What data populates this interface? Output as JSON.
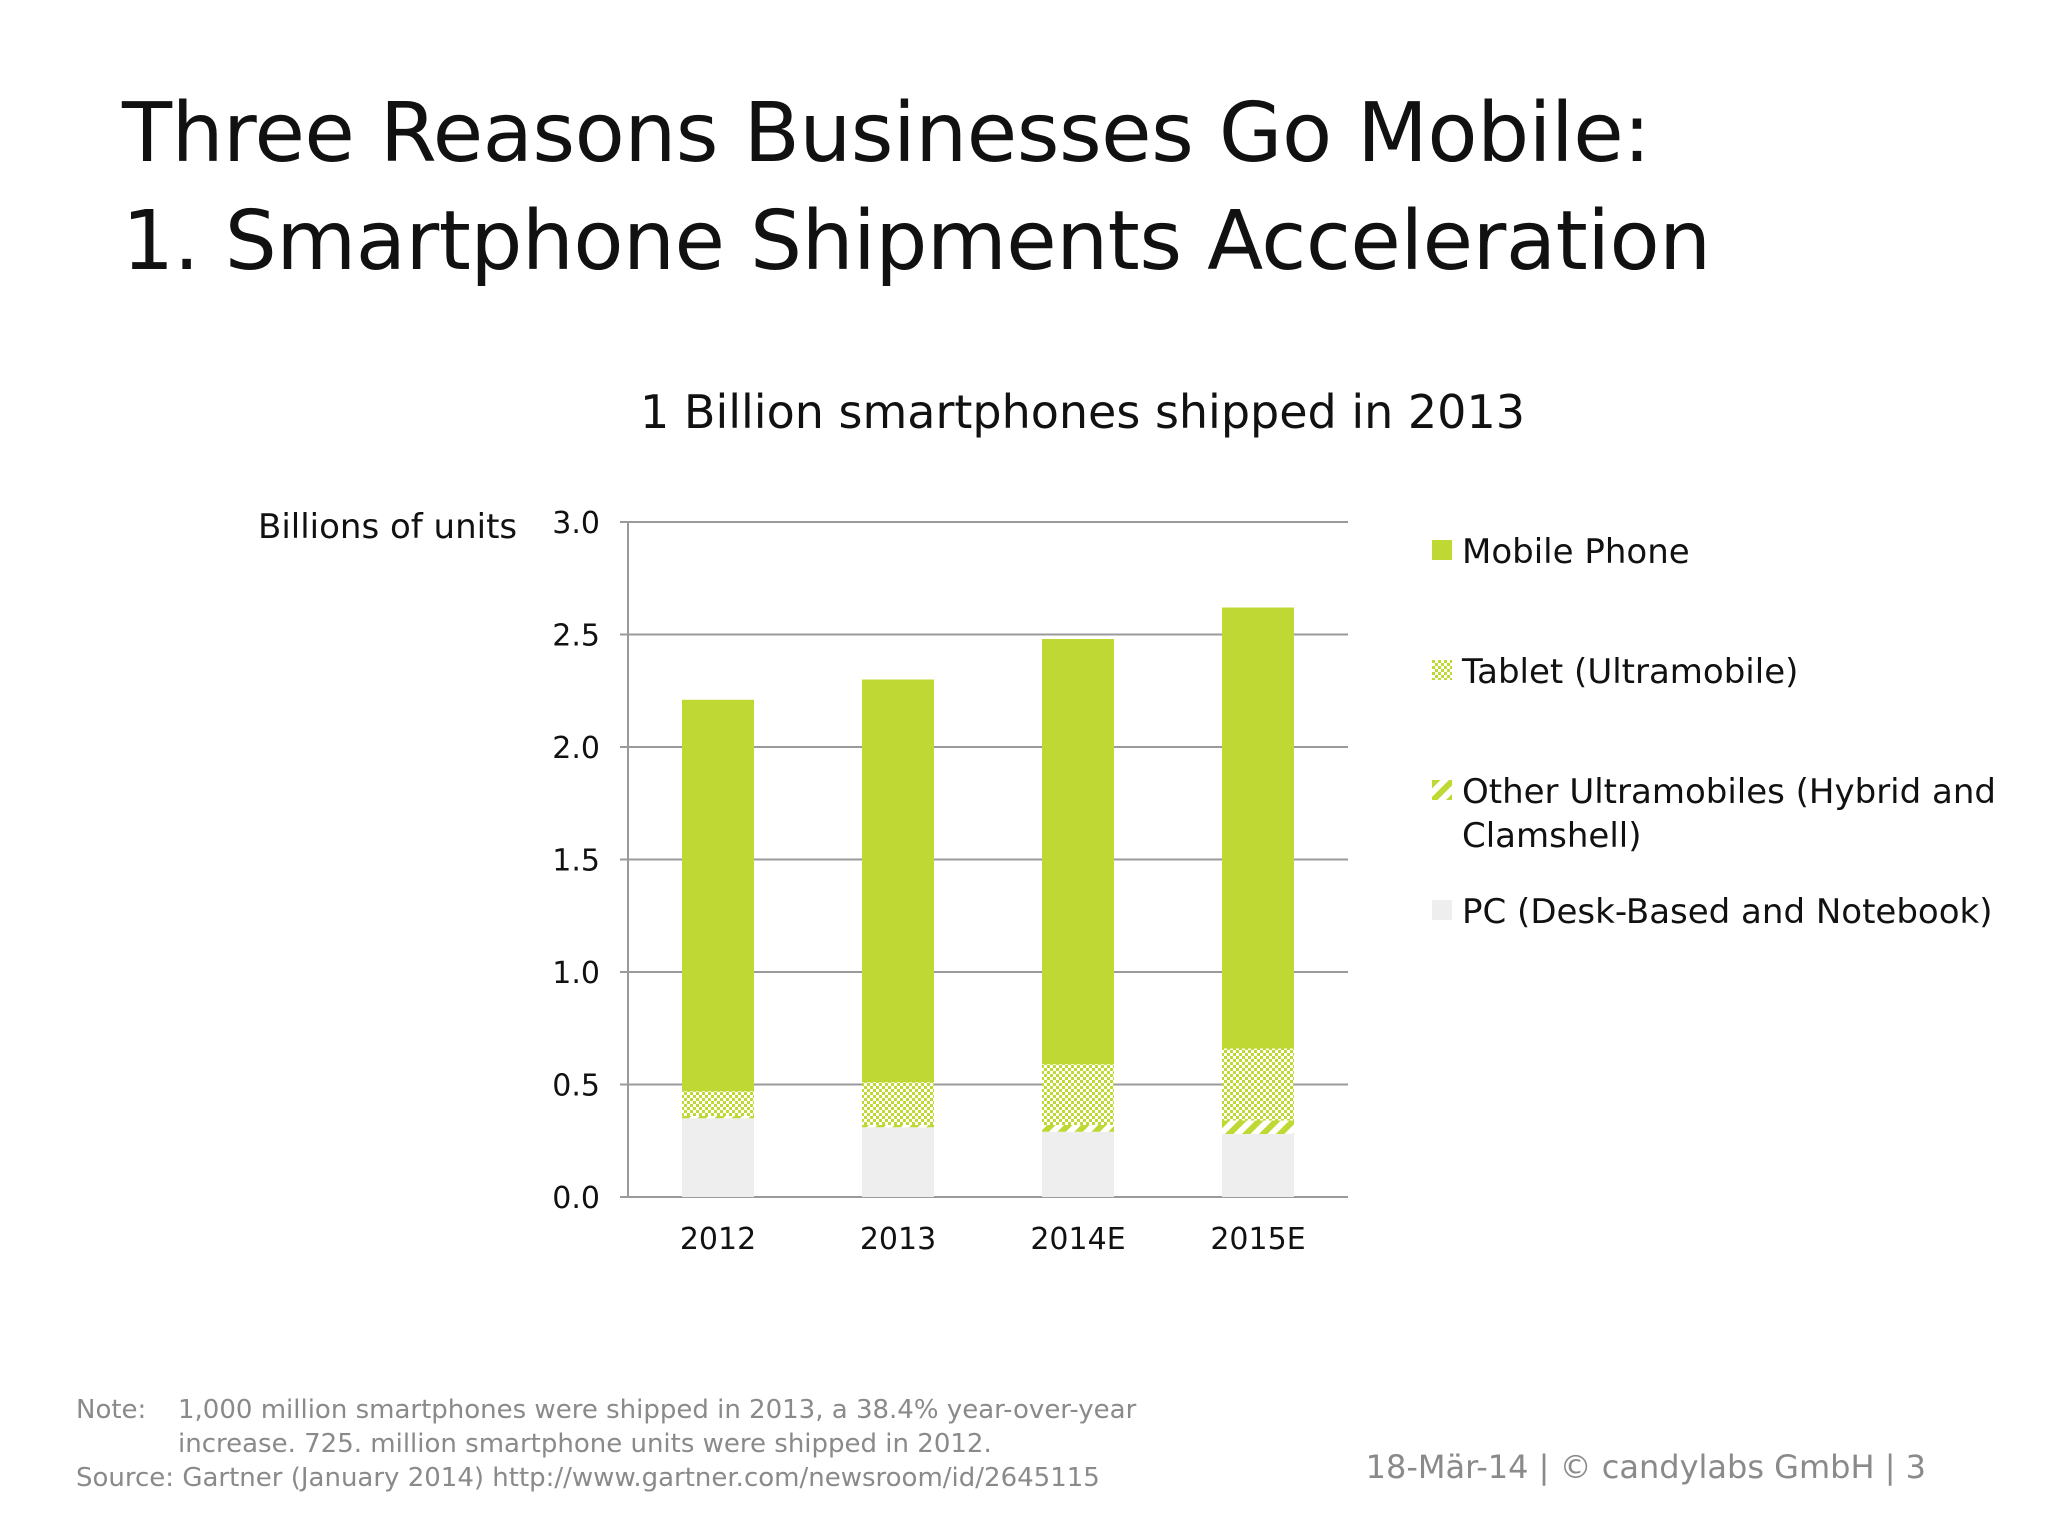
{
  "slide": {
    "title_line1": "Three Reasons Businesses Go Mobile:",
    "title_line2": "1. Smartphone Shipments Acceleration",
    "subtitle": "1 Billion smartphones shipped in 2013",
    "ylabel": "Billions of units",
    "brand_color": "#BFD833",
    "logo_icon": "power-icon"
  },
  "chart_data": {
    "type": "bar",
    "stacked": true,
    "categories": [
      "2012",
      "2013",
      "2014E",
      "2015E"
    ],
    "ylim": [
      0,
      3.0
    ],
    "yticks": [
      "0.0",
      "0.5",
      "1.0",
      "1.5",
      "2.0",
      "2.5",
      "3.0"
    ],
    "ylabel": "Billions of units",
    "grid": true,
    "legend_position": "right",
    "series": [
      {
        "name": "PC (Desk-Based and Notebook)",
        "values": [
          0.35,
          0.31,
          0.29,
          0.28
        ],
        "color": "#EEEEEF",
        "pattern": "solid"
      },
      {
        "name": "Other Ultramobiles (Hybrid and Clamshell)",
        "values": [
          0.01,
          0.01,
          0.03,
          0.06
        ],
        "color": "#BFD833",
        "pattern": "diagonal"
      },
      {
        "name": "Tablet (Ultramobile)",
        "values": [
          0.11,
          0.19,
          0.27,
          0.32
        ],
        "color": "#BFD833",
        "pattern": "checker"
      },
      {
        "name": "Mobile Phone",
        "values": [
          1.74,
          1.79,
          1.89,
          1.96
        ],
        "color": "#BFD833",
        "pattern": "solid"
      }
    ]
  },
  "legend": [
    {
      "label": "Mobile Phone",
      "pattern": "solid"
    },
    {
      "label": "Tablet (Ultramobile)",
      "pattern": "checker"
    },
    {
      "label": "Other Ultramobiles (Hybrid and Clamshell)",
      "pattern": "diagonal"
    },
    {
      "label": "PC (Desk-Based and Notebook)",
      "pattern": "pc"
    }
  ],
  "footnote": {
    "note_label": "Note:",
    "note_line1": "1,000 million smartphones were shipped in 2013, a 38.4% year-over-year",
    "note_line2": "increase. 725. million smartphone units were shipped in 2012.",
    "source": "Source: Gartner (January 2014) http://www.gartner.com/newsroom/id/2645115"
  },
  "footer": {
    "text": "18-Mär-14 | © candylabs GmbH | 3"
  }
}
